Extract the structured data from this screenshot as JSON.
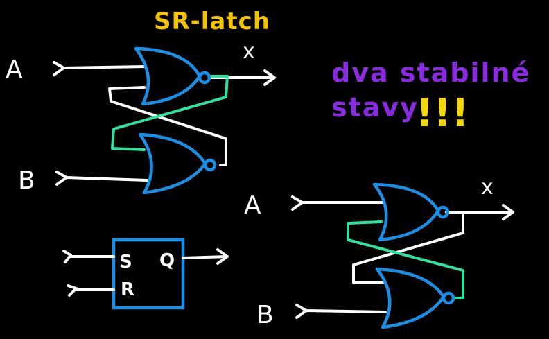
{
  "title": "SR-latch",
  "note": {
    "line1": "dva stabilné",
    "line2": "stavy",
    "marks": "!!!"
  },
  "latch_top": {
    "input_a": "A",
    "input_b": "B",
    "output": "x"
  },
  "latch_bottom": {
    "input_a": "A",
    "input_b": "B",
    "output": "x"
  },
  "sr_block": {
    "set": "S",
    "reset": "R",
    "output": "Q"
  },
  "colors": {
    "title": "#f5c400",
    "note": "#8a2be2",
    "marks": "#f5d800",
    "gate": "#1a8fe6",
    "active_wire": "#2fe3a0",
    "wire": "#ffffff"
  }
}
